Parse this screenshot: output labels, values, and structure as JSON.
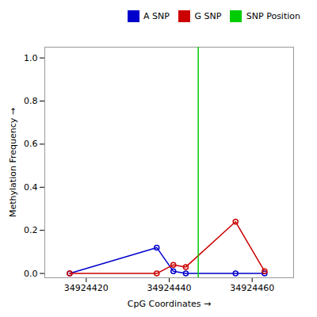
{
  "chart_data": {
    "type": "line",
    "x_label": "CpG Coordinates",
    "y_label": "Methylation Frequency",
    "x": [
      34924416,
      34924437,
      34924441,
      34924444,
      34924456,
      34924463
    ],
    "series": [
      {
        "name": "A SNP",
        "color": "#0000cc",
        "marker": "o",
        "values": [
          0.0,
          0.12,
          0.01,
          0.0,
          0.0,
          0.0
        ]
      },
      {
        "name": "G SNP",
        "color": "#cc0000",
        "marker": "o",
        "values": [
          0.0,
          0.0,
          0.04,
          0.03,
          0.24,
          0.01
        ]
      },
      {
        "name": "SNP Position",
        "color": "#00cc00",
        "type": "vline",
        "x": 34924447
      }
    ],
    "xlim": [
      34924410,
      34924470
    ],
    "xticks": [
      34924420,
      34924440,
      34924460
    ],
    "ylim": [
      -0.02,
      1.05
    ],
    "yticks": [
      {
        "value": 0,
        "label": "0.0"
      },
      0.2,
      0.4,
      0.6,
      0.8,
      {
        "value": 1,
        "label": "1.0"
      }
    ],
    "grid": false,
    "legend": "upper right"
  }
}
